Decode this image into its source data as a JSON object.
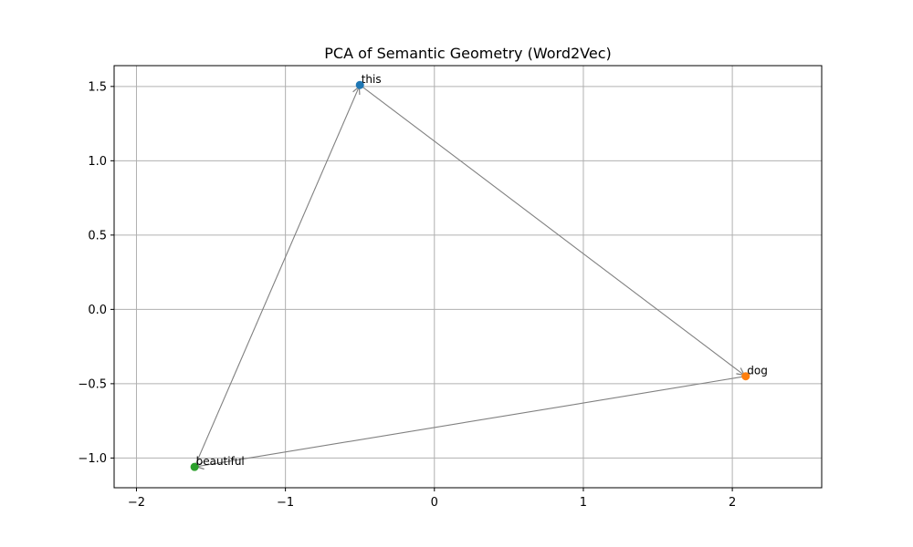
{
  "chart_data": {
    "type": "scatter",
    "title": "PCA of Semantic Geometry (Word2Vec)",
    "xlim": [
      -2.15,
      2.6
    ],
    "ylim": [
      -1.2,
      1.64
    ],
    "x_ticks": [
      -2,
      -1,
      0,
      1,
      2
    ],
    "y_ticks": [
      -1.0,
      -0.5,
      0.0,
      0.5,
      1.0,
      1.5
    ],
    "x_tick_labels": [
      "−2",
      "−1",
      "0",
      "1",
      "2"
    ],
    "y_tick_labels": [
      "−1.0",
      "−0.5",
      "0.0",
      "0.5",
      "1.0",
      "1.5"
    ],
    "grid": true,
    "points": [
      {
        "label": "this",
        "x": -0.5,
        "y": 1.51,
        "color": "#1f77b4"
      },
      {
        "label": "dog",
        "x": 2.09,
        "y": -0.45,
        "color": "#ff7f0e"
      },
      {
        "label": "beautiful",
        "x": -1.61,
        "y": -1.06,
        "color": "#2ca02c"
      }
    ],
    "arrows": [
      {
        "from": "this",
        "to": "dog"
      },
      {
        "from": "dog",
        "to": "beautiful"
      },
      {
        "from": "beautiful",
        "to": "this"
      }
    ],
    "arrow_color": "#808080",
    "grid_color": "#b0b0b0"
  }
}
